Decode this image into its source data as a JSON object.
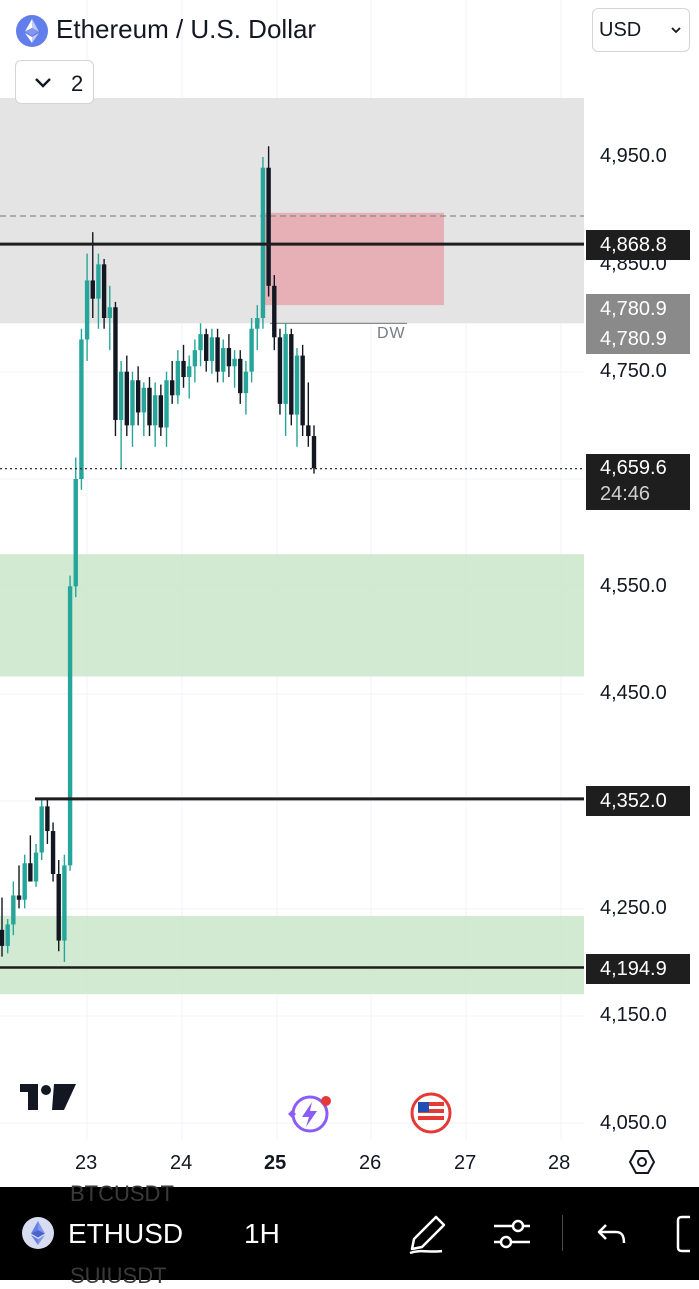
{
  "header": {
    "title": "Ethereum / U.S. Dollar",
    "currency": "USD",
    "indicator_count": "2"
  },
  "price_axis": {
    "labels": [
      "4,950.0",
      "4,850.0",
      "4,750.0",
      "4,550.0",
      "4,450.0",
      "4,250.0",
      "4,150.0",
      "4,050.0"
    ]
  },
  "price_tags": {
    "level_top": "4,868.8",
    "box_a": "4,780.9",
    "box_b": "4,780.9",
    "current_price": "4,659.6",
    "countdown": "24:46",
    "level_mid": "4,352.0",
    "level_low": "4,194.9"
  },
  "time_axis": {
    "labels": [
      "23",
      "24",
      "25",
      "26",
      "27",
      "28"
    ],
    "highlighted": "25"
  },
  "annotations": {
    "dw_label": "DW"
  },
  "bottom_bar": {
    "symbol": "ETHUSD",
    "interval": "1H",
    "ghost_symbols": [
      "BTCUSDT",
      "SUIUSDT"
    ]
  },
  "colors": {
    "up": "#26a69a",
    "down": "#131722",
    "supply_zone": "#e7a8b0",
    "demand_zone": "#cce8cc",
    "grey_zone": "#e3e3e3"
  },
  "chart_data": {
    "type": "candlestick",
    "symbol": "ETHUSD",
    "interval": "1H",
    "ylim": [
      4020,
      5050
    ],
    "x_ticks": [
      "23",
      "24",
      "25",
      "26",
      "27",
      "28"
    ],
    "horizontal_levels": [
      4868.8,
      4352.0,
      4194.9
    ],
    "current_price": 4659.6,
    "dashed_level": 4895,
    "dw_level": 4795,
    "zones": [
      {
        "kind": "grey",
        "from": 4795,
        "to": 5005
      },
      {
        "kind": "supply",
        "from": 4812,
        "to": 4898
      },
      {
        "kind": "demand",
        "from": 4466,
        "to": 4580
      },
      {
        "kind": "demand",
        "from": 4170,
        "to": 4243
      }
    ],
    "candles": [
      [
        4230,
        4260,
        4205,
        4215
      ],
      [
        4215,
        4240,
        4208,
        4235
      ],
      [
        4235,
        4275,
        4225,
        4262
      ],
      [
        4262,
        4290,
        4250,
        4258
      ],
      [
        4258,
        4300,
        4250,
        4292
      ],
      [
        4292,
        4318,
        4280,
        4275
      ],
      [
        4275,
        4310,
        4270,
        4302
      ],
      [
        4302,
        4352,
        4295,
        4345
      ],
      [
        4345,
        4352,
        4310,
        4322
      ],
      [
        4322,
        4330,
        4275,
        4282
      ],
      [
        4282,
        4295,
        4210,
        4220
      ],
      [
        4220,
        4300,
        4200,
        4290
      ],
      [
        4290,
        4560,
        4285,
        4550
      ],
      [
        4550,
        4670,
        4540,
        4650
      ],
      [
        4650,
        4790,
        4640,
        4780
      ],
      [
        4780,
        4860,
        4760,
        4835
      ],
      [
        4835,
        4880,
        4800,
        4818
      ],
      [
        4818,
        4860,
        4790,
        4850
      ],
      [
        4850,
        4855,
        4790,
        4800
      ],
      [
        4800,
        4830,
        4770,
        4810
      ],
      [
        4810,
        4815,
        4690,
        4705
      ],
      [
        4705,
        4760,
        4660,
        4750
      ],
      [
        4750,
        4765,
        4690,
        4700
      ],
      [
        4700,
        4750,
        4680,
        4742
      ],
      [
        4742,
        4755,
        4700,
        4712
      ],
      [
        4712,
        4740,
        4690,
        4735
      ],
      [
        4735,
        4745,
        4690,
        4700
      ],
      [
        4700,
        4740,
        4680,
        4728
      ],
      [
        4728,
        4738,
        4690,
        4698
      ],
      [
        4698,
        4750,
        4680,
        4742
      ],
      [
        4742,
        4760,
        4720,
        4728
      ],
      [
        4728,
        4770,
        4720,
        4760
      ],
      [
        4760,
        4775,
        4735,
        4745
      ],
      [
        4745,
        4765,
        4725,
        4755
      ],
      [
        4755,
        4780,
        4740,
        4770
      ],
      [
        4770,
        4795,
        4755,
        4785
      ],
      [
        4785,
        4790,
        4750,
        4760
      ],
      [
        4760,
        4790,
        4748,
        4782
      ],
      [
        4782,
        4790,
        4740,
        4750
      ],
      [
        4750,
        4780,
        4740,
        4772
      ],
      [
        4772,
        4785,
        4745,
        4755
      ],
      [
        4755,
        4770,
        4735,
        4762
      ],
      [
        4762,
        4770,
        4720,
        4730
      ],
      [
        4730,
        4760,
        4710,
        4750
      ],
      [
        4750,
        4800,
        4740,
        4790
      ],
      [
        4790,
        4812,
        4770,
        4800
      ],
      [
        4800,
        4950,
        4790,
        4940
      ],
      [
        4940,
        4960,
        4820,
        4830
      ],
      [
        4830,
        4840,
        4770,
        4782
      ],
      [
        4782,
        4790,
        4710,
        4720
      ],
      [
        4720,
        4795,
        4690,
        4785
      ],
      [
        4785,
        4790,
        4700,
        4710
      ],
      [
        4710,
        4772,
        4680,
        4765
      ],
      [
        4765,
        4775,
        4690,
        4700
      ],
      [
        4700,
        4740,
        4680,
        4690
      ],
      [
        4690,
        4700,
        4655,
        4660
      ]
    ]
  }
}
